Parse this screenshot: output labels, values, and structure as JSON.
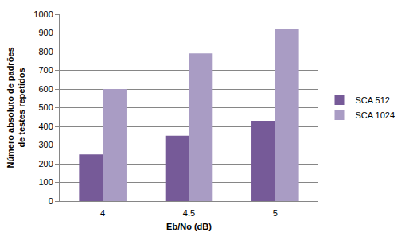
{
  "chart_data": {
    "type": "bar",
    "x_label": "Eb/No (dB)",
    "y_label": "Número absoluto de padrões de testes repetidos",
    "categories": [
      "4",
      "4.5",
      "5"
    ],
    "series": [
      {
        "name": "SCA 512",
        "color": "#765a98",
        "values": [
          250,
          350,
          430
        ]
      },
      {
        "name": "SCA 1024",
        "color": "#a99cc4",
        "values": [
          600,
          790,
          920
        ]
      }
    ],
    "ylim": [
      0,
      1000
    ],
    "yticks": [
      0,
      100,
      200,
      300,
      400,
      500,
      600,
      700,
      800,
      900,
      1000
    ],
    "grid": true,
    "legend": "right"
  }
}
